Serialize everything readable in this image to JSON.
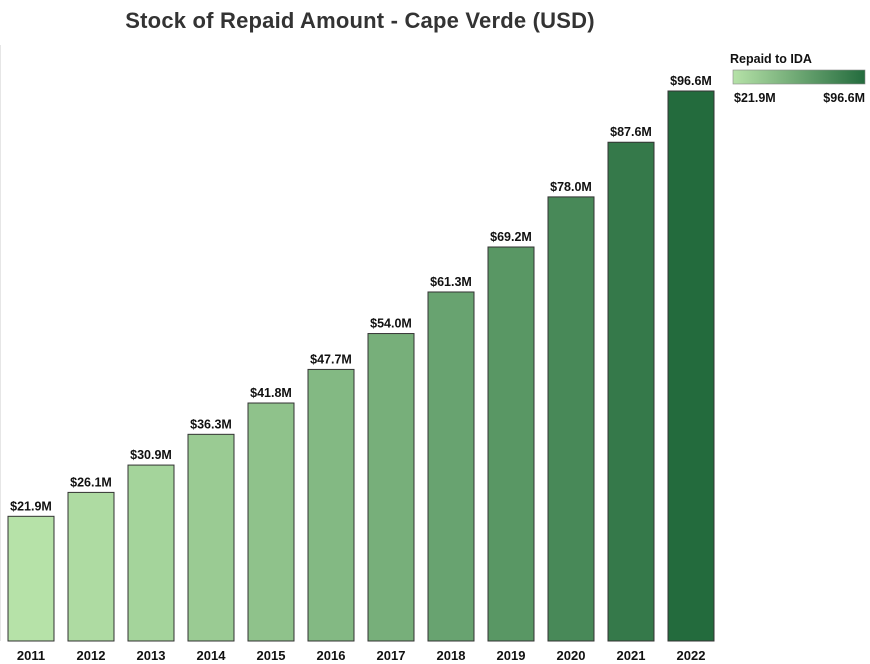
{
  "chart_data": {
    "type": "bar",
    "title": "Stock of Repaid Amount - Cape Verde (USD)",
    "xlabel": "",
    "ylabel": "",
    "categories": [
      "2011",
      "2012",
      "2013",
      "2014",
      "2015",
      "2016",
      "2017",
      "2018",
      "2019",
      "2020",
      "2021",
      "2022"
    ],
    "values": [
      21.9,
      26.1,
      30.9,
      36.3,
      41.8,
      47.7,
      54.0,
      61.3,
      69.2,
      78.0,
      87.6,
      96.6
    ],
    "data_labels": [
      "$21.9M",
      "$26.1M",
      "$30.9M",
      "$36.3M",
      "$41.8M",
      "$47.7M",
      "$54.0M",
      "$61.3M",
      "$69.2M",
      "$78.0M",
      "$87.6M",
      "$96.6M"
    ],
    "ylim": [
      0,
      96.6
    ],
    "grid": false,
    "legend": {
      "title": "Repaid to IDA",
      "placement": "top-right",
      "min_label": "$21.9M",
      "max_label": "$96.6M",
      "color_min": "#b6e2a8",
      "color_max": "#236b3d"
    }
  }
}
